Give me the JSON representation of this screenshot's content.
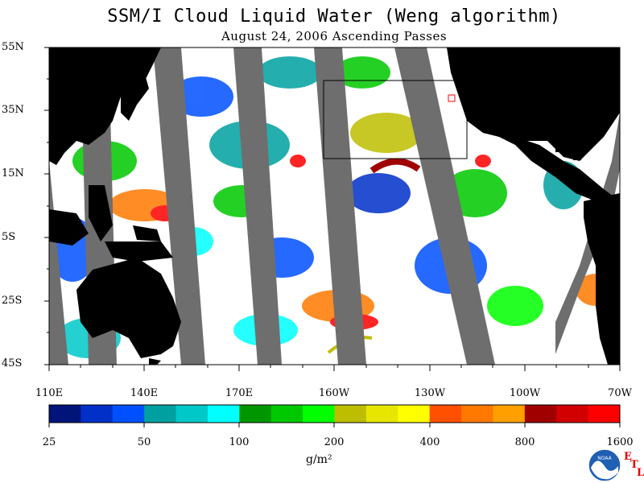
{
  "title": "SSM/I Cloud Liquid Water (Weng algorithm)",
  "subtitle": "August 24, 2006  Ascending Passes",
  "lat_labels": [
    "55N",
    "35N",
    "15N",
    "5S",
    "25S",
    "45S"
  ],
  "lon_labels": [
    "110E",
    "140E",
    "170E",
    "160W",
    "130W",
    "100W",
    "70W"
  ],
  "colorbar": {
    "labels": [
      "25",
      "50",
      "100",
      "200",
      "400",
      "800",
      "1600"
    ],
    "units": "g/m²",
    "colors": [
      "#00147a",
      "#0030c8",
      "#0050ff",
      "#00a0a0",
      "#00c8c8",
      "#00ffff",
      "#009600",
      "#00c800",
      "#00ff00",
      "#bebe00",
      "#e6e600",
      "#ffff00",
      "#ff5000",
      "#ff7800",
      "#ffa000",
      "#a00000",
      "#d20000",
      "#ff0000"
    ]
  },
  "colors": {
    "land": "#000000",
    "no_data_swath": "#6e6e6e",
    "clear": "#ffffff",
    "box_outline": "#000000"
  },
  "logo": {
    "agency": "NOAA",
    "lab_letters": [
      "E",
      "T",
      "L"
    ]
  }
}
